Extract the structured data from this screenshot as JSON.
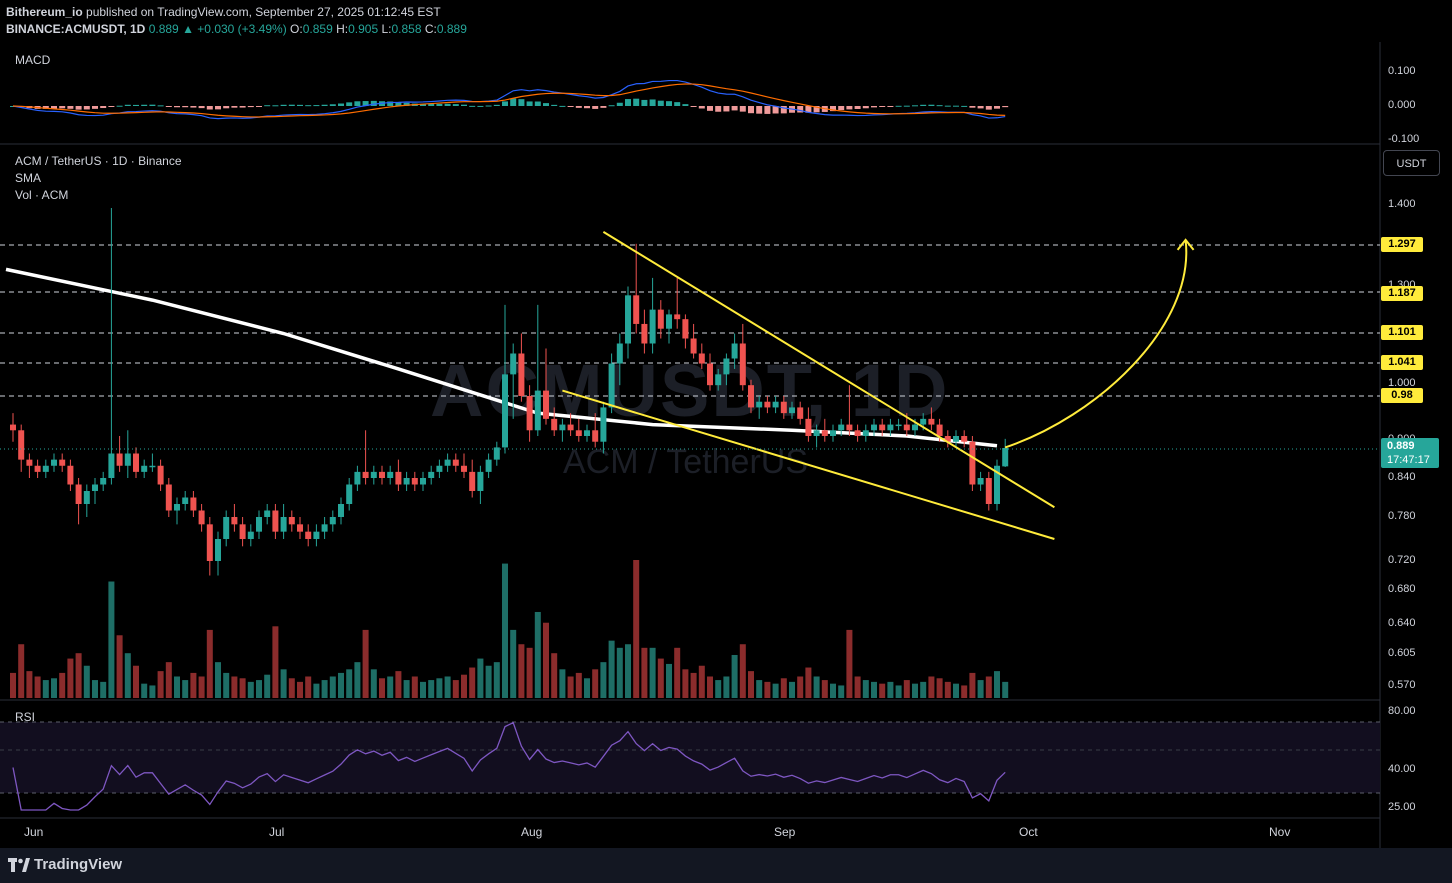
{
  "header": {
    "user": "Bithereum_io",
    "published": "published on TradingView.com, September 27, 2025 01:12:45 EST",
    "symbol": "BINANCE:ACMUSDT, 1D",
    "price": "0.889",
    "change": "+0.030 (+3.49%)",
    "open_label": "O:",
    "open": "0.859",
    "high_label": "H:",
    "high": "0.905",
    "low_label": "L:",
    "low": "0.858",
    "close_label": "C:",
    "close": "0.889"
  },
  "panes": {
    "macd_label": "MACD",
    "main_title": "ACM / TetherUS · 1D · Binance",
    "sma_label": "SMA",
    "vol_label": "Vol · ACM",
    "rsi_label": "RSI"
  },
  "watermark": {
    "big": "ACMUSDT, 1D",
    "small": "ACM / TetherUS"
  },
  "price_axis": {
    "currency": "USDT",
    "ticks": [
      "1.400",
      "1.300",
      "1.000",
      "0.900",
      "0.840",
      "0.780",
      "0.720",
      "0.680",
      "0.640",
      "0.605",
      "0.570"
    ],
    "current_price": "0.889",
    "countdown": "17:47:17"
  },
  "macd_axis": [
    "0.100",
    "0.000",
    "-0.100"
  ],
  "rsi_axis": [
    "80.00",
    "40.00",
    "25.00"
  ],
  "time_axis": [
    "Jun",
    "Jul",
    "Aug",
    "Sep",
    "Oct",
    "Nov"
  ],
  "footer": {
    "brand": "TradingView"
  },
  "colors": {
    "up": "#26a69a",
    "down": "#ef5350",
    "sma": "#ffffff",
    "trendline": "#ffeb3b",
    "rsi": "#7e57c2",
    "macd": "#2962ff",
    "signal": "#ff6d00"
  },
  "chart_data": {
    "type": "candlestick",
    "symbol": "ACMUSDT",
    "interval": "1D",
    "ylim": [
      0.55,
      1.47
    ],
    "target_levels": [
      1.297,
      1.187,
      1.101,
      1.041,
      0.98
    ],
    "sma": [
      {
        "d": "2025-05-28",
        "v": 1.24
      },
      {
        "d": "2025-06-15",
        "v": 1.17
      },
      {
        "d": "2025-07-01",
        "v": 1.1
      },
      {
        "d": "2025-07-15",
        "v": 1.03
      },
      {
        "d": "2025-08-01",
        "v": 0.95
      },
      {
        "d": "2025-08-15",
        "v": 0.93
      },
      {
        "d": "2025-09-01",
        "v": 0.92
      },
      {
        "d": "2025-09-15",
        "v": 0.91
      },
      {
        "d": "2025-09-26",
        "v": 0.893
      }
    ],
    "trendlines": [
      {
        "name": "upper",
        "from": {
          "d": "2025-08-09",
          "p": 1.33
        },
        "to": {
          "d": "2025-10-03",
          "p": 0.795
        }
      },
      {
        "name": "lower",
        "from": {
          "d": "2025-08-04",
          "p": 0.99
        },
        "to": {
          "d": "2025-10-03",
          "p": 0.75
        }
      }
    ],
    "projection": {
      "from": {
        "d": "2025-09-27",
        "p": 0.89
      },
      "to": {
        "d": "2025-10-19",
        "p": 1.31
      }
    },
    "candles": [
      {
        "d": "2025-05-29",
        "o": 0.93,
        "h": 0.95,
        "l": 0.9,
        "c": 0.92,
        "v": 14
      },
      {
        "d": "2025-05-30",
        "o": 0.92,
        "h": 0.93,
        "l": 0.85,
        "c": 0.87,
        "v": 30
      },
      {
        "d": "2025-05-31",
        "o": 0.87,
        "h": 0.88,
        "l": 0.84,
        "c": 0.86,
        "v": 15
      },
      {
        "d": "2025-06-01",
        "o": 0.86,
        "h": 0.87,
        "l": 0.84,
        "c": 0.85,
        "v": 12
      },
      {
        "d": "2025-06-02",
        "o": 0.85,
        "h": 0.87,
        "l": 0.84,
        "c": 0.86,
        "v": 10
      },
      {
        "d": "2025-06-03",
        "o": 0.86,
        "h": 0.88,
        "l": 0.85,
        "c": 0.87,
        "v": 11
      },
      {
        "d": "2025-06-04",
        "o": 0.87,
        "h": 0.88,
        "l": 0.85,
        "c": 0.86,
        "v": 14
      },
      {
        "d": "2025-06-05",
        "o": 0.86,
        "h": 0.87,
        "l": 0.82,
        "c": 0.83,
        "v": 22
      },
      {
        "d": "2025-06-06",
        "o": 0.83,
        "h": 0.84,
        "l": 0.77,
        "c": 0.8,
        "v": 25
      },
      {
        "d": "2025-06-07",
        "o": 0.8,
        "h": 0.83,
        "l": 0.78,
        "c": 0.82,
        "v": 18
      },
      {
        "d": "2025-06-08",
        "o": 0.82,
        "h": 0.84,
        "l": 0.8,
        "c": 0.83,
        "v": 10
      },
      {
        "d": "2025-06-09",
        "o": 0.83,
        "h": 0.85,
        "l": 0.82,
        "c": 0.84,
        "v": 9
      },
      {
        "d": "2025-06-10",
        "o": 0.84,
        "h": 1.39,
        "l": 0.83,
        "c": 0.88,
        "v": 65
      },
      {
        "d": "2025-06-11",
        "o": 0.88,
        "h": 0.91,
        "l": 0.85,
        "c": 0.86,
        "v": 35
      },
      {
        "d": "2025-06-12",
        "o": 0.86,
        "h": 0.92,
        "l": 0.84,
        "c": 0.88,
        "v": 25
      },
      {
        "d": "2025-06-13",
        "o": 0.88,
        "h": 0.89,
        "l": 0.84,
        "c": 0.85,
        "v": 18
      },
      {
        "d": "2025-06-14",
        "o": 0.85,
        "h": 0.87,
        "l": 0.84,
        "c": 0.86,
        "v": 8
      },
      {
        "d": "2025-06-15",
        "o": 0.86,
        "h": 0.88,
        "l": 0.85,
        "c": 0.86,
        "v": 7
      },
      {
        "d": "2025-06-16",
        "o": 0.86,
        "h": 0.87,
        "l": 0.82,
        "c": 0.83,
        "v": 15
      },
      {
        "d": "2025-06-17",
        "o": 0.83,
        "h": 0.84,
        "l": 0.78,
        "c": 0.79,
        "v": 20
      },
      {
        "d": "2025-06-18",
        "o": 0.79,
        "h": 0.81,
        "l": 0.77,
        "c": 0.8,
        "v": 12
      },
      {
        "d": "2025-06-19",
        "o": 0.8,
        "h": 0.82,
        "l": 0.79,
        "c": 0.81,
        "v": 10
      },
      {
        "d": "2025-06-20",
        "o": 0.81,
        "h": 0.82,
        "l": 0.78,
        "c": 0.79,
        "v": 14
      },
      {
        "d": "2025-06-21",
        "o": 0.79,
        "h": 0.8,
        "l": 0.76,
        "c": 0.77,
        "v": 12
      },
      {
        "d": "2025-06-22",
        "o": 0.77,
        "h": 0.78,
        "l": 0.7,
        "c": 0.72,
        "v": 38
      },
      {
        "d": "2025-06-23",
        "o": 0.72,
        "h": 0.76,
        "l": 0.7,
        "c": 0.75,
        "v": 20
      },
      {
        "d": "2025-06-24",
        "o": 0.75,
        "h": 0.79,
        "l": 0.74,
        "c": 0.78,
        "v": 14
      },
      {
        "d": "2025-06-25",
        "o": 0.78,
        "h": 0.8,
        "l": 0.76,
        "c": 0.77,
        "v": 12
      },
      {
        "d": "2025-06-26",
        "o": 0.77,
        "h": 0.78,
        "l": 0.74,
        "c": 0.75,
        "v": 11
      },
      {
        "d": "2025-06-27",
        "o": 0.75,
        "h": 0.77,
        "l": 0.74,
        "c": 0.76,
        "v": 9
      },
      {
        "d": "2025-06-28",
        "o": 0.76,
        "h": 0.79,
        "l": 0.75,
        "c": 0.78,
        "v": 10
      },
      {
        "d": "2025-06-29",
        "o": 0.78,
        "h": 0.8,
        "l": 0.77,
        "c": 0.79,
        "v": 13
      },
      {
        "d": "2025-06-30",
        "o": 0.79,
        "h": 0.8,
        "l": 0.75,
        "c": 0.76,
        "v": 40
      },
      {
        "d": "2025-07-01",
        "o": 0.76,
        "h": 0.8,
        "l": 0.75,
        "c": 0.78,
        "v": 16
      },
      {
        "d": "2025-07-02",
        "o": 0.78,
        "h": 0.79,
        "l": 0.76,
        "c": 0.77,
        "v": 11
      },
      {
        "d": "2025-07-03",
        "o": 0.77,
        "h": 0.78,
        "l": 0.75,
        "c": 0.76,
        "v": 9
      },
      {
        "d": "2025-07-04",
        "o": 0.76,
        "h": 0.77,
        "l": 0.74,
        "c": 0.75,
        "v": 12
      },
      {
        "d": "2025-07-05",
        "o": 0.75,
        "h": 0.77,
        "l": 0.74,
        "c": 0.76,
        "v": 8
      },
      {
        "d": "2025-07-06",
        "o": 0.76,
        "h": 0.78,
        "l": 0.75,
        "c": 0.77,
        "v": 10
      },
      {
        "d": "2025-07-07",
        "o": 0.77,
        "h": 0.79,
        "l": 0.76,
        "c": 0.78,
        "v": 12
      },
      {
        "d": "2025-07-08",
        "o": 0.78,
        "h": 0.81,
        "l": 0.77,
        "c": 0.8,
        "v": 14
      },
      {
        "d": "2025-07-09",
        "o": 0.8,
        "h": 0.84,
        "l": 0.79,
        "c": 0.83,
        "v": 16
      },
      {
        "d": "2025-07-10",
        "o": 0.83,
        "h": 0.86,
        "l": 0.82,
        "c": 0.85,
        "v": 20
      },
      {
        "d": "2025-07-11",
        "o": 0.85,
        "h": 0.92,
        "l": 0.83,
        "c": 0.84,
        "v": 38
      },
      {
        "d": "2025-07-12",
        "o": 0.84,
        "h": 0.86,
        "l": 0.83,
        "c": 0.85,
        "v": 16
      },
      {
        "d": "2025-07-13",
        "o": 0.85,
        "h": 0.86,
        "l": 0.83,
        "c": 0.84,
        "v": 11
      },
      {
        "d": "2025-07-14",
        "o": 0.84,
        "h": 0.86,
        "l": 0.83,
        "c": 0.85,
        "v": 12
      },
      {
        "d": "2025-07-15",
        "o": 0.85,
        "h": 0.87,
        "l": 0.82,
        "c": 0.83,
        "v": 15
      },
      {
        "d": "2025-07-16",
        "o": 0.83,
        "h": 0.85,
        "l": 0.82,
        "c": 0.84,
        "v": 10
      },
      {
        "d": "2025-07-17",
        "o": 0.84,
        "h": 0.85,
        "l": 0.82,
        "c": 0.83,
        "v": 12
      },
      {
        "d": "2025-07-18",
        "o": 0.83,
        "h": 0.85,
        "l": 0.82,
        "c": 0.84,
        "v": 9
      },
      {
        "d": "2025-07-19",
        "o": 0.84,
        "h": 0.86,
        "l": 0.83,
        "c": 0.85,
        "v": 10
      },
      {
        "d": "2025-07-20",
        "o": 0.85,
        "h": 0.87,
        "l": 0.84,
        "c": 0.86,
        "v": 11
      },
      {
        "d": "2025-07-21",
        "o": 0.86,
        "h": 0.88,
        "l": 0.85,
        "c": 0.87,
        "v": 12
      },
      {
        "d": "2025-07-22",
        "o": 0.87,
        "h": 0.88,
        "l": 0.85,
        "c": 0.86,
        "v": 10
      },
      {
        "d": "2025-07-23",
        "o": 0.86,
        "h": 0.88,
        "l": 0.84,
        "c": 0.85,
        "v": 13
      },
      {
        "d": "2025-07-24",
        "o": 0.85,
        "h": 0.87,
        "l": 0.81,
        "c": 0.82,
        "v": 17
      },
      {
        "d": "2025-07-25",
        "o": 0.82,
        "h": 0.86,
        "l": 0.8,
        "c": 0.85,
        "v": 22
      },
      {
        "d": "2025-07-26",
        "o": 0.85,
        "h": 0.88,
        "l": 0.84,
        "c": 0.87,
        "v": 18
      },
      {
        "d": "2025-07-27",
        "o": 0.87,
        "h": 0.9,
        "l": 0.86,
        "c": 0.89,
        "v": 20
      },
      {
        "d": "2025-07-28",
        "o": 0.89,
        "h": 1.16,
        "l": 0.88,
        "c": 1.02,
        "v": 75
      },
      {
        "d": "2025-07-29",
        "o": 1.02,
        "h": 1.08,
        "l": 0.94,
        "c": 1.06,
        "v": 38
      },
      {
        "d": "2025-07-30",
        "o": 1.06,
        "h": 1.1,
        "l": 0.97,
        "c": 0.98,
        "v": 30
      },
      {
        "d": "2025-07-31",
        "o": 0.98,
        "h": 1.0,
        "l": 0.9,
        "c": 0.92,
        "v": 28
      },
      {
        "d": "2025-08-01",
        "o": 0.92,
        "h": 1.16,
        "l": 0.91,
        "c": 0.99,
        "v": 48
      },
      {
        "d": "2025-08-02",
        "o": 0.99,
        "h": 1.07,
        "l": 0.93,
        "c": 0.94,
        "v": 42
      },
      {
        "d": "2025-08-03",
        "o": 0.94,
        "h": 0.96,
        "l": 0.91,
        "c": 0.92,
        "v": 25
      },
      {
        "d": "2025-08-04",
        "o": 0.92,
        "h": 0.94,
        "l": 0.9,
        "c": 0.93,
        "v": 16
      },
      {
        "d": "2025-08-05",
        "o": 0.93,
        "h": 0.95,
        "l": 0.91,
        "c": 0.92,
        "v": 12
      },
      {
        "d": "2025-08-06",
        "o": 0.92,
        "h": 0.94,
        "l": 0.9,
        "c": 0.91,
        "v": 14
      },
      {
        "d": "2025-08-07",
        "o": 0.91,
        "h": 0.93,
        "l": 0.9,
        "c": 0.92,
        "v": 11
      },
      {
        "d": "2025-08-08",
        "o": 0.92,
        "h": 0.95,
        "l": 0.89,
        "c": 0.9,
        "v": 16
      },
      {
        "d": "2025-08-09",
        "o": 0.9,
        "h": 0.97,
        "l": 0.88,
        "c": 0.96,
        "v": 20
      },
      {
        "d": "2025-08-10",
        "o": 0.96,
        "h": 1.06,
        "l": 0.95,
        "c": 1.04,
        "v": 32
      },
      {
        "d": "2025-08-11",
        "o": 1.04,
        "h": 1.1,
        "l": 1.0,
        "c": 1.08,
        "v": 28
      },
      {
        "d": "2025-08-12",
        "o": 1.08,
        "h": 1.2,
        "l": 1.05,
        "c": 1.18,
        "v": 30
      },
      {
        "d": "2025-08-13",
        "o": 1.18,
        "h": 1.3,
        "l": 1.1,
        "c": 1.12,
        "v": 77
      },
      {
        "d": "2025-08-14",
        "o": 1.12,
        "h": 1.15,
        "l": 1.06,
        "c": 1.08,
        "v": 28
      },
      {
        "d": "2025-08-15",
        "o": 1.08,
        "h": 1.22,
        "l": 1.06,
        "c": 1.15,
        "v": 28
      },
      {
        "d": "2025-08-16",
        "o": 1.15,
        "h": 1.17,
        "l": 1.09,
        "c": 1.11,
        "v": 22
      },
      {
        "d": "2025-08-17",
        "o": 1.11,
        "h": 1.15,
        "l": 1.08,
        "c": 1.14,
        "v": 19
      },
      {
        "d": "2025-08-18",
        "o": 1.14,
        "h": 1.22,
        "l": 1.11,
        "c": 1.13,
        "v": 28
      },
      {
        "d": "2025-08-19",
        "o": 1.13,
        "h": 1.14,
        "l": 1.07,
        "c": 1.09,
        "v": 16
      },
      {
        "d": "2025-08-20",
        "o": 1.09,
        "h": 1.12,
        "l": 1.05,
        "c": 1.06,
        "v": 14
      },
      {
        "d": "2025-08-21",
        "o": 1.06,
        "h": 1.08,
        "l": 1.03,
        "c": 1.04,
        "v": 18
      },
      {
        "d": "2025-08-22",
        "o": 1.04,
        "h": 1.06,
        "l": 0.99,
        "c": 1.0,
        "v": 12
      },
      {
        "d": "2025-08-23",
        "o": 1.0,
        "h": 1.03,
        "l": 0.99,
        "c": 1.02,
        "v": 10
      },
      {
        "d": "2025-08-24",
        "o": 1.02,
        "h": 1.06,
        "l": 1.0,
        "c": 1.05,
        "v": 12
      },
      {
        "d": "2025-08-25",
        "o": 1.05,
        "h": 1.1,
        "l": 1.03,
        "c": 1.08,
        "v": 24
      },
      {
        "d": "2025-08-26",
        "o": 1.08,
        "h": 1.12,
        "l": 0.99,
        "c": 1.0,
        "v": 30
      },
      {
        "d": "2025-08-27",
        "o": 1.0,
        "h": 1.01,
        "l": 0.95,
        "c": 0.96,
        "v": 15
      },
      {
        "d": "2025-08-28",
        "o": 0.96,
        "h": 0.98,
        "l": 0.94,
        "c": 0.97,
        "v": 10
      },
      {
        "d": "2025-08-29",
        "o": 0.97,
        "h": 0.98,
        "l": 0.95,
        "c": 0.96,
        "v": 9
      },
      {
        "d": "2025-08-30",
        "o": 0.96,
        "h": 0.98,
        "l": 0.95,
        "c": 0.97,
        "v": 8
      },
      {
        "d": "2025-08-31",
        "o": 0.97,
        "h": 0.98,
        "l": 0.94,
        "c": 0.95,
        "v": 11
      },
      {
        "d": "2025-09-01",
        "o": 0.95,
        "h": 0.97,
        "l": 0.94,
        "c": 0.96,
        "v": 9
      },
      {
        "d": "2025-09-02",
        "o": 0.96,
        "h": 0.97,
        "l": 0.93,
        "c": 0.94,
        "v": 12
      },
      {
        "d": "2025-09-03",
        "o": 0.94,
        "h": 0.96,
        "l": 0.9,
        "c": 0.91,
        "v": 17
      },
      {
        "d": "2025-09-04",
        "o": 0.91,
        "h": 0.93,
        "l": 0.89,
        "c": 0.92,
        "v": 12
      },
      {
        "d": "2025-09-05",
        "o": 0.92,
        "h": 0.94,
        "l": 0.9,
        "c": 0.91,
        "v": 10
      },
      {
        "d": "2025-09-06",
        "o": 0.91,
        "h": 0.93,
        "l": 0.9,
        "c": 0.92,
        "v": 8
      },
      {
        "d": "2025-09-07",
        "o": 0.92,
        "h": 0.94,
        "l": 0.91,
        "c": 0.93,
        "v": 7
      },
      {
        "d": "2025-09-08",
        "o": 0.93,
        "h": 1.0,
        "l": 0.91,
        "c": 0.92,
        "v": 38
      },
      {
        "d": "2025-09-09",
        "o": 0.92,
        "h": 0.93,
        "l": 0.9,
        "c": 0.91,
        "v": 12
      },
      {
        "d": "2025-09-10",
        "o": 0.91,
        "h": 0.93,
        "l": 0.9,
        "c": 0.92,
        "v": 10
      },
      {
        "d": "2025-09-11",
        "o": 0.92,
        "h": 0.94,
        "l": 0.91,
        "c": 0.93,
        "v": 9
      },
      {
        "d": "2025-09-12",
        "o": 0.93,
        "h": 0.94,
        "l": 0.91,
        "c": 0.92,
        "v": 8
      },
      {
        "d": "2025-09-13",
        "o": 0.92,
        "h": 0.94,
        "l": 0.91,
        "c": 0.93,
        "v": 9
      },
      {
        "d": "2025-09-14",
        "o": 0.93,
        "h": 0.94,
        "l": 0.92,
        "c": 0.93,
        "v": 7
      },
      {
        "d": "2025-09-15",
        "o": 0.93,
        "h": 0.95,
        "l": 0.91,
        "c": 0.92,
        "v": 10
      },
      {
        "d": "2025-09-16",
        "o": 0.92,
        "h": 0.94,
        "l": 0.91,
        "c": 0.93,
        "v": 8
      },
      {
        "d": "2025-09-17",
        "o": 0.93,
        "h": 0.95,
        "l": 0.92,
        "c": 0.94,
        "v": 9
      },
      {
        "d": "2025-09-18",
        "o": 0.94,
        "h": 0.96,
        "l": 0.92,
        "c": 0.93,
        "v": 12
      },
      {
        "d": "2025-09-19",
        "o": 0.93,
        "h": 0.94,
        "l": 0.9,
        "c": 0.91,
        "v": 11
      },
      {
        "d": "2025-09-20",
        "o": 0.91,
        "h": 0.92,
        "l": 0.89,
        "c": 0.9,
        "v": 9
      },
      {
        "d": "2025-09-21",
        "o": 0.9,
        "h": 0.92,
        "l": 0.89,
        "c": 0.91,
        "v": 8
      },
      {
        "d": "2025-09-22",
        "o": 0.91,
        "h": 0.92,
        "l": 0.89,
        "c": 0.9,
        "v": 7
      },
      {
        "d": "2025-09-23",
        "o": 0.9,
        "h": 0.91,
        "l": 0.82,
        "c": 0.83,
        "v": 14
      },
      {
        "d": "2025-09-24",
        "o": 0.83,
        "h": 0.85,
        "l": 0.82,
        "c": 0.84,
        "v": 10
      },
      {
        "d": "2025-09-25",
        "o": 0.84,
        "h": 0.85,
        "l": 0.79,
        "c": 0.8,
        "v": 12
      },
      {
        "d": "2025-09-26",
        "o": 0.8,
        "h": 0.87,
        "l": 0.79,
        "c": 0.86,
        "v": 15
      },
      {
        "d": "2025-09-27",
        "o": 0.859,
        "h": 0.905,
        "l": 0.858,
        "c": 0.889,
        "v": 9
      }
    ]
  }
}
